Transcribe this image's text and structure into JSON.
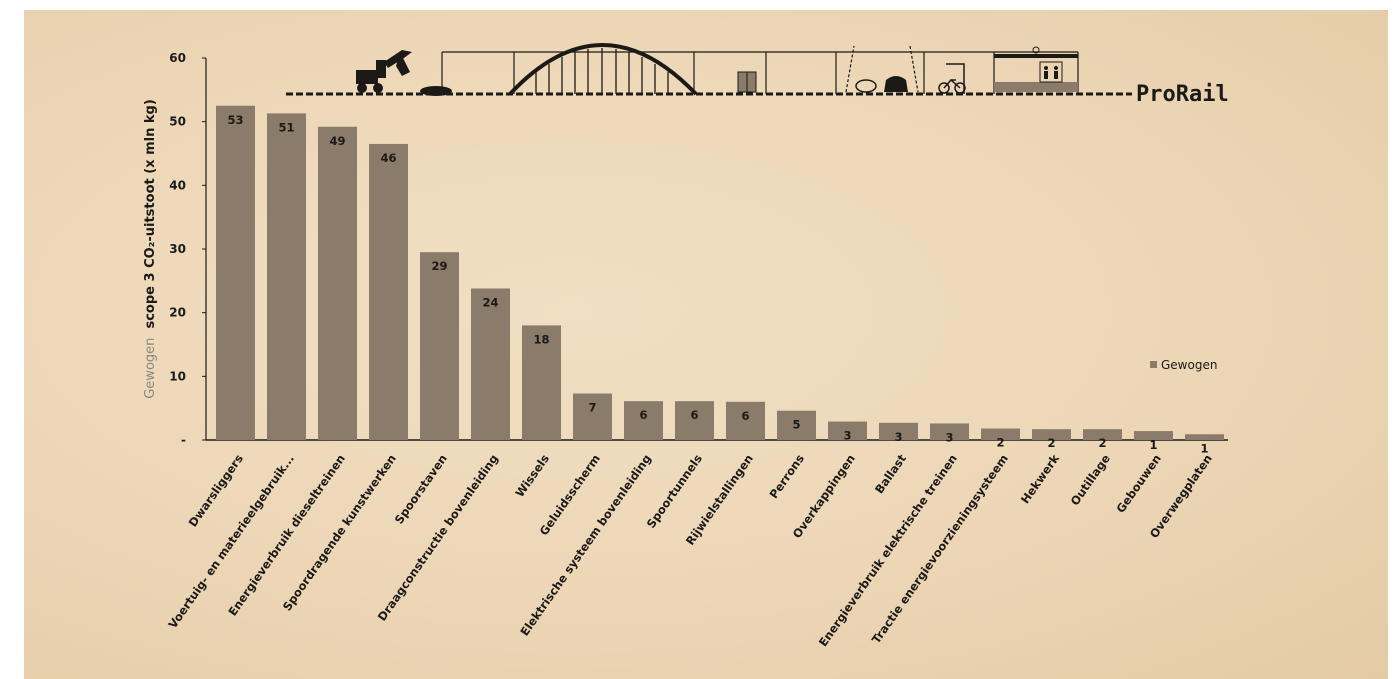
{
  "brand": "ProRail",
  "colors": {
    "bar": "#8a7b6a",
    "ink": "#1c1a17",
    "paper": "#ecd6b6",
    "muted": "#8f8878"
  },
  "chart_data": {
    "type": "bar",
    "ylabel_prefix": "Gewogen",
    "ylabel_main": "scope 3 CO₂-uitstoot (x mln kg)",
    "ylim": [
      0,
      60
    ],
    "yticks": [
      "-",
      "10",
      "20",
      "30",
      "40",
      "50",
      "60"
    ],
    "grid": false,
    "legend_position": "right",
    "categories": [
      "Dwarsliggers",
      "Voertuig- en materieelgebruik...",
      "Energieverbruik dieseltreinen",
      "Spoordragende kunstwerken",
      "Spoorstaven",
      "Draagconstructie bovenleiding",
      "Wissels",
      "Geluidsscherm",
      "Elektrische systeem bovenleiding",
      "Spoortunnels",
      "Rijwielstallingen",
      "Perrons",
      "Overkappingen",
      "Ballast",
      "Energieverbruik elektrische treinen",
      "Tractie energievoorzieningsysteem",
      "Hekwerk",
      "Outillage",
      "Gebouwen",
      "Overwegplaten"
    ],
    "series": [
      {
        "name": "Gewogen",
        "values": [
          52.5,
          51.3,
          49.2,
          46.5,
          29.5,
          23.8,
          18.0,
          7.3,
          6.1,
          6.1,
          6.0,
          4.6,
          2.9,
          2.7,
          2.6,
          1.8,
          1.7,
          1.7,
          1.4,
          0.9
        ],
        "labels": [
          "53",
          "51",
          "49",
          "46",
          "29",
          "24",
          "18",
          "7",
          "6",
          "6",
          "6",
          "5",
          "3",
          "3",
          "3",
          "2",
          "2",
          "2",
          "1",
          "1"
        ]
      }
    ]
  }
}
